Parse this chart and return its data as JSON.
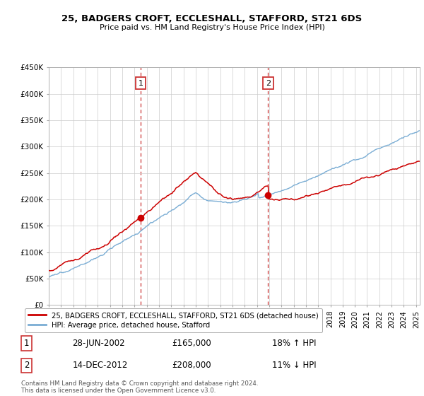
{
  "title": "25, BADGERS CROFT, ECCLESHALL, STAFFORD, ST21 6DS",
  "subtitle": "Price paid vs. HM Land Registry's House Price Index (HPI)",
  "ylim": [
    0,
    450000
  ],
  "yticks": [
    0,
    50000,
    100000,
    150000,
    200000,
    250000,
    300000,
    350000,
    400000,
    450000
  ],
  "ytick_labels": [
    "£0",
    "£50K",
    "£100K",
    "£150K",
    "£200K",
    "£250K",
    "£300K",
    "£350K",
    "£400K",
    "£450K"
  ],
  "hpi_color": "#7aadd4",
  "price_color": "#cc0000",
  "sale_marker_color": "#cc0000",
  "annotation_box_color": "#cc3333",
  "background_color": "#ffffff",
  "grid_color": "#cccccc",
  "legend_label_red": "25, BADGERS CROFT, ECCLESHALL, STAFFORD, ST21 6DS (detached house)",
  "legend_label_blue": "HPI: Average price, detached house, Stafford",
  "table_row1": [
    "1",
    "28-JUN-2002",
    "£165,000",
    "18% ↑ HPI"
  ],
  "table_row2": [
    "2",
    "14-DEC-2012",
    "£208,000",
    "11% ↓ HPI"
  ],
  "footer": "Contains HM Land Registry data © Crown copyright and database right 2024.\nThis data is licensed under the Open Government Licence v3.0.",
  "sale1_x": 2002.5,
  "sale1_y": 165000,
  "sale2_x": 2012.92,
  "sale2_y": 208000,
  "xlim_start": 1995,
  "xlim_end": 2025.3
}
